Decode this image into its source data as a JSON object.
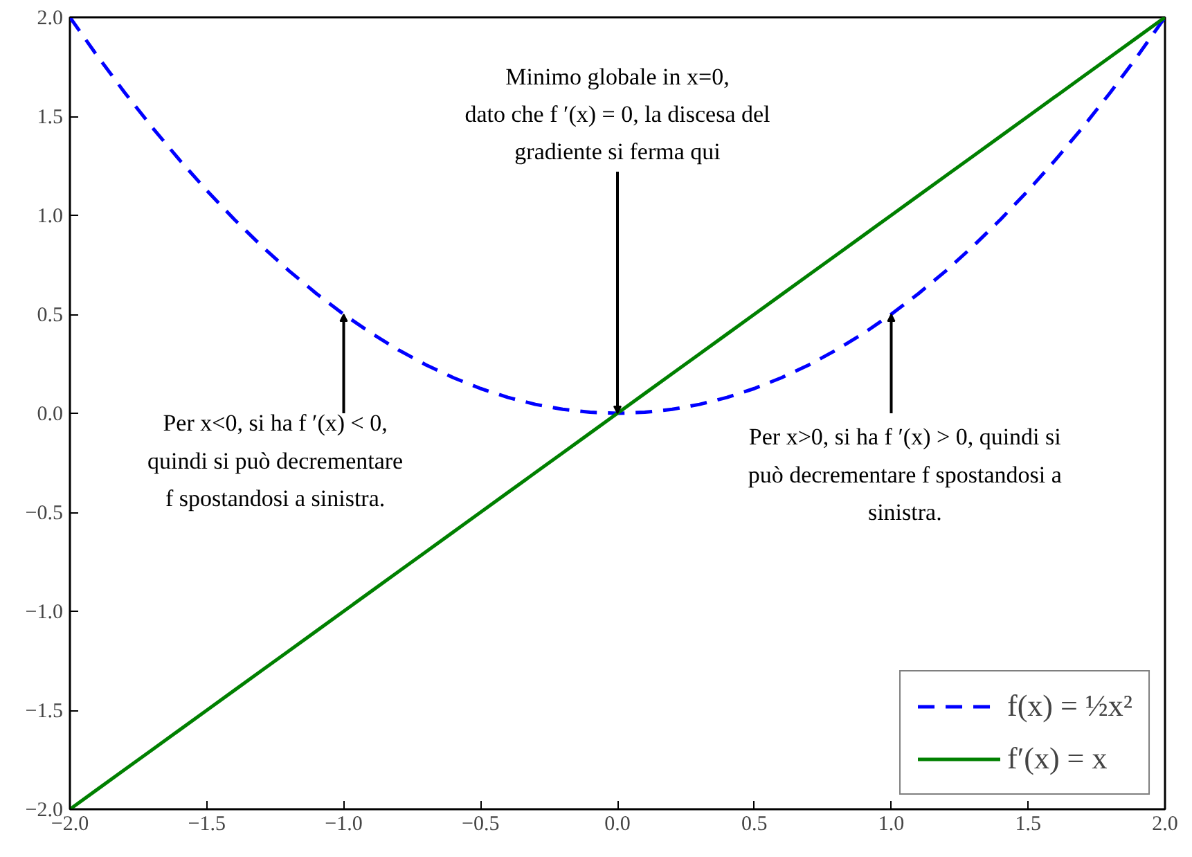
{
  "chart_data": {
    "type": "line",
    "x": [
      -2.0,
      -1.9,
      -1.8,
      -1.7,
      -1.6,
      -1.5,
      -1.4,
      -1.3,
      -1.2,
      -1.1,
      -1.0,
      -0.9,
      -0.8,
      -0.7,
      -0.6,
      -0.5,
      -0.4,
      -0.3,
      -0.2,
      -0.1,
      0.0,
      0.1,
      0.2,
      0.3,
      0.4,
      0.5,
      0.6,
      0.7,
      0.8,
      0.9,
      1.0,
      1.1,
      1.2,
      1.3,
      1.4,
      1.5,
      1.6,
      1.7,
      1.8,
      1.9,
      2.0
    ],
    "series": [
      {
        "name": "f(x) = ½x²",
        "color": "#0000ff",
        "line_style": "dashed",
        "values": [
          2.0,
          1.805,
          1.62,
          1.445,
          1.28,
          1.125,
          0.98,
          0.845,
          0.72,
          0.605,
          0.5,
          0.405,
          0.32,
          0.245,
          0.18,
          0.125,
          0.08,
          0.045,
          0.02,
          0.005,
          0.0,
          0.005,
          0.02,
          0.045,
          0.08,
          0.125,
          0.18,
          0.245,
          0.32,
          0.405,
          0.5,
          0.605,
          0.72,
          0.845,
          0.98,
          1.125,
          1.28,
          1.445,
          1.62,
          1.805,
          2.0
        ]
      },
      {
        "name": "f′(x) = x",
        "color": "#008000",
        "line_style": "solid",
        "values": [
          -2.0,
          -1.9,
          -1.8,
          -1.7,
          -1.6,
          -1.5,
          -1.4,
          -1.3,
          -1.2,
          -1.1,
          -1.0,
          -0.9,
          -0.8,
          -0.7,
          -0.6,
          -0.5,
          -0.4,
          -0.3,
          -0.2,
          -0.1,
          0.0,
          0.1,
          0.2,
          0.3,
          0.4,
          0.5,
          0.6,
          0.7,
          0.8,
          0.9,
          1.0,
          1.1,
          1.2,
          1.3,
          1.4,
          1.5,
          1.6,
          1.7,
          1.8,
          1.9,
          2.0
        ]
      }
    ],
    "xlim": [
      -2.0,
      2.0
    ],
    "ylim": [
      -2.0,
      2.0
    ],
    "xticks": [
      {
        "value": -2.0,
        "label": "−2.0"
      },
      {
        "value": -1.5,
        "label": "−1.5"
      },
      {
        "value": -1.0,
        "label": "−1.0"
      },
      {
        "value": -0.5,
        "label": "−0.5"
      },
      {
        "value": 0.0,
        "label": "0.0"
      },
      {
        "value": 0.5,
        "label": "0.5"
      },
      {
        "value": 1.0,
        "label": "1.0"
      },
      {
        "value": 1.5,
        "label": "1.5"
      },
      {
        "value": 2.0,
        "label": "2.0"
      }
    ],
    "yticks": [
      {
        "value": -2.0,
        "label": "−2.0"
      },
      {
        "value": -1.5,
        "label": "−1.5"
      },
      {
        "value": -1.0,
        "label": "−1.0"
      },
      {
        "value": -0.5,
        "label": "−0.5"
      },
      {
        "value": 0.0,
        "label": "0.0"
      },
      {
        "value": 0.5,
        "label": "0.5"
      },
      {
        "value": 1.0,
        "label": "1.0"
      },
      {
        "value": 1.5,
        "label": "1.5"
      },
      {
        "value": 2.0,
        "label": "2.0"
      }
    ],
    "annotations": [
      {
        "text": "Per x<0, si ha f ′(x) < 0,\nquindi si può decrementare\nf spostandosi a sinistra.",
        "x": -1.0,
        "y": 0.5
      },
      {
        "text": "Minimo globale in x=0,\ndato che f ′(x) = 0, la discesa del\ngradiente si ferma qui",
        "x": 0.0,
        "y": 0.0
      },
      {
        "text": "Per x>0, si ha f ′(x) > 0, quindi si\npuò decrementare f spostandosi a\nsinistra.",
        "x": 1.0,
        "y": 0.5
      }
    ],
    "grid": false,
    "legend": "bottom right",
    "marker": "none"
  }
}
